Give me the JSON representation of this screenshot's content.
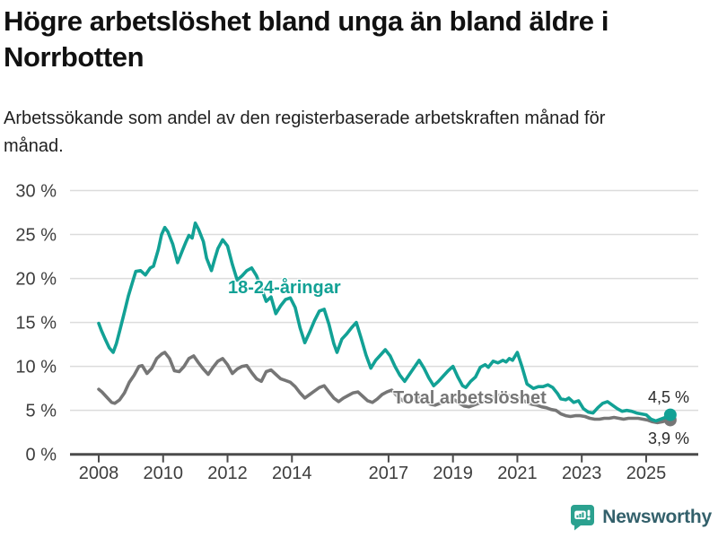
{
  "header": {
    "title": "Högre arbetslöshet bland unga än bland äldre i Norrbotten",
    "subtitle": "Arbetssökande som andel av den registerbaserade arbetskraften månad för månad."
  },
  "footer": {
    "brand": "Newsworthy",
    "logo_icon": "bar-chart-speech-bubble-icon"
  },
  "colors": {
    "young_line": "#12a195",
    "total_line": "#767676",
    "gridline": "#dcdcdc",
    "axis": "#4b4b4b",
    "tick_text": "#3d3d3d",
    "logo_bubble": "#2ba18f",
    "brand_text": "#33606b"
  },
  "chart_data": {
    "type": "line",
    "title": "Högre arbetslöshet bland unga än bland äldre i Norrbotten",
    "xlabel": "",
    "ylabel": "",
    "grid": "horizontal",
    "x_axis": {
      "ticks": [
        2008,
        2010,
        2012,
        2014,
        2017,
        2019,
        2021,
        2023,
        2025
      ],
      "tick_labels": [
        "2008",
        "2010",
        "2012",
        "2014",
        "2017",
        "2019",
        "2021",
        "2023",
        "2025"
      ],
      "range": [
        2007.1,
        2026.65
      ]
    },
    "y_axis": {
      "tick_values": [
        30,
        25,
        20,
        15,
        10,
        5,
        0
      ],
      "tick_labels": [
        "30 %",
        "25 %",
        "20 %",
        "15 %",
        "10 %",
        "5 %",
        "0 %"
      ],
      "range": [
        0,
        30
      ],
      "unit": "%"
    },
    "series": [
      {
        "name": "18-24-åringar",
        "color": "#12a195",
        "end_label": "4,5 %",
        "end_value": 4.5,
        "points": [
          [
            2008.0,
            14.9
          ],
          [
            2008.08,
            14.1
          ],
          [
            2008.2,
            13.1
          ],
          [
            2008.33,
            12.1
          ],
          [
            2008.45,
            11.6
          ],
          [
            2008.55,
            12.6
          ],
          [
            2008.67,
            14.3
          ],
          [
            2008.8,
            16.2
          ],
          [
            2008.92,
            18.0
          ],
          [
            2009.05,
            19.6
          ],
          [
            2009.15,
            20.8
          ],
          [
            2009.3,
            20.9
          ],
          [
            2009.45,
            20.4
          ],
          [
            2009.6,
            21.2
          ],
          [
            2009.7,
            21.4
          ],
          [
            2009.85,
            23.3
          ],
          [
            2009.95,
            25.0
          ],
          [
            2010.05,
            25.8
          ],
          [
            2010.15,
            25.3
          ],
          [
            2010.3,
            23.9
          ],
          [
            2010.45,
            21.8
          ],
          [
            2010.6,
            23.2
          ],
          [
            2010.7,
            24.1
          ],
          [
            2010.8,
            24.9
          ],
          [
            2010.9,
            24.6
          ],
          [
            2011.0,
            26.3
          ],
          [
            2011.1,
            25.6
          ],
          [
            2011.25,
            24.2
          ],
          [
            2011.35,
            22.3
          ],
          [
            2011.5,
            20.9
          ],
          [
            2011.6,
            22.2
          ],
          [
            2011.7,
            23.4
          ],
          [
            2011.85,
            24.4
          ],
          [
            2012.0,
            23.7
          ],
          [
            2012.15,
            21.6
          ],
          [
            2012.3,
            19.8
          ],
          [
            2012.45,
            20.3
          ],
          [
            2012.6,
            20.9
          ],
          [
            2012.75,
            21.2
          ],
          [
            2012.9,
            20.3
          ],
          [
            2013.05,
            18.9
          ],
          [
            2013.2,
            17.4
          ],
          [
            2013.35,
            17.9
          ],
          [
            2013.5,
            16.0
          ],
          [
            2013.65,
            16.9
          ],
          [
            2013.8,
            17.6
          ],
          [
            2013.95,
            17.8
          ],
          [
            2014.1,
            16.7
          ],
          [
            2014.25,
            14.4
          ],
          [
            2014.4,
            12.7
          ],
          [
            2014.55,
            13.9
          ],
          [
            2014.7,
            15.2
          ],
          [
            2014.85,
            16.3
          ],
          [
            2015.0,
            16.5
          ],
          [
            2015.15,
            14.8
          ],
          [
            2015.3,
            12.6
          ],
          [
            2015.4,
            11.6
          ],
          [
            2015.55,
            13.1
          ],
          [
            2015.7,
            13.7
          ],
          [
            2015.85,
            14.4
          ],
          [
            2016.0,
            15.0
          ],
          [
            2016.15,
            13.2
          ],
          [
            2016.3,
            11.3
          ],
          [
            2016.45,
            9.8
          ],
          [
            2016.6,
            10.7
          ],
          [
            2016.75,
            11.3
          ],
          [
            2016.9,
            11.9
          ],
          [
            2017.05,
            11.2
          ],
          [
            2017.2,
            10.0
          ],
          [
            2017.35,
            9.0
          ],
          [
            2017.5,
            8.3
          ],
          [
            2017.65,
            9.1
          ],
          [
            2017.8,
            9.9
          ],
          [
            2017.95,
            10.7
          ],
          [
            2018.1,
            9.8
          ],
          [
            2018.25,
            8.7
          ],
          [
            2018.4,
            7.8
          ],
          [
            2018.55,
            8.3
          ],
          [
            2018.7,
            8.9
          ],
          [
            2018.85,
            9.5
          ],
          [
            2019.0,
            10.0
          ],
          [
            2019.15,
            8.8
          ],
          [
            2019.3,
            7.8
          ],
          [
            2019.4,
            7.6
          ],
          [
            2019.55,
            8.3
          ],
          [
            2019.7,
            8.8
          ],
          [
            2019.85,
            9.9
          ],
          [
            2020.0,
            10.2
          ],
          [
            2020.1,
            9.9
          ],
          [
            2020.25,
            10.6
          ],
          [
            2020.4,
            10.4
          ],
          [
            2020.55,
            10.7
          ],
          [
            2020.65,
            10.5
          ],
          [
            2020.75,
            10.9
          ],
          [
            2020.85,
            10.7
          ],
          [
            2021.0,
            11.6
          ],
          [
            2021.15,
            9.9
          ],
          [
            2021.3,
            8.0
          ],
          [
            2021.5,
            7.5
          ],
          [
            2021.65,
            7.7
          ],
          [
            2021.8,
            7.7
          ],
          [
            2021.95,
            7.9
          ],
          [
            2022.1,
            7.6
          ],
          [
            2022.25,
            6.9
          ],
          [
            2022.35,
            6.3
          ],
          [
            2022.5,
            6.2
          ],
          [
            2022.6,
            6.4
          ],
          [
            2022.75,
            5.9
          ],
          [
            2022.9,
            6.1
          ],
          [
            2023.05,
            5.2
          ],
          [
            2023.2,
            4.8
          ],
          [
            2023.35,
            4.7
          ],
          [
            2023.5,
            5.3
          ],
          [
            2023.65,
            5.8
          ],
          [
            2023.8,
            6.0
          ],
          [
            2023.95,
            5.6
          ],
          [
            2024.1,
            5.2
          ],
          [
            2024.25,
            4.9
          ],
          [
            2024.4,
            5.0
          ],
          [
            2024.55,
            4.9
          ],
          [
            2024.7,
            4.7
          ],
          [
            2024.85,
            4.6
          ],
          [
            2025.0,
            4.5
          ],
          [
            2025.15,
            4.0
          ],
          [
            2025.3,
            3.8
          ],
          [
            2025.45,
            4.0
          ],
          [
            2025.6,
            4.2
          ],
          [
            2025.75,
            4.5
          ]
        ]
      },
      {
        "name": "Total arbetslöshet",
        "color": "#767676",
        "end_label": "3,9 %",
        "end_value": 3.9,
        "points": [
          [
            2008.0,
            7.4
          ],
          [
            2008.1,
            7.1
          ],
          [
            2008.25,
            6.5
          ],
          [
            2008.4,
            5.9
          ],
          [
            2008.5,
            5.8
          ],
          [
            2008.65,
            6.2
          ],
          [
            2008.8,
            7.0
          ],
          [
            2008.95,
            8.2
          ],
          [
            2009.1,
            9.0
          ],
          [
            2009.25,
            10.0
          ],
          [
            2009.35,
            10.1
          ],
          [
            2009.5,
            9.2
          ],
          [
            2009.65,
            9.8
          ],
          [
            2009.8,
            10.9
          ],
          [
            2009.95,
            11.4
          ],
          [
            2010.05,
            11.6
          ],
          [
            2010.2,
            10.9
          ],
          [
            2010.35,
            9.5
          ],
          [
            2010.5,
            9.4
          ],
          [
            2010.65,
            10.0
          ],
          [
            2010.8,
            10.9
          ],
          [
            2010.95,
            11.2
          ],
          [
            2011.1,
            10.4
          ],
          [
            2011.25,
            9.7
          ],
          [
            2011.4,
            9.1
          ],
          [
            2011.55,
            9.9
          ],
          [
            2011.7,
            10.6
          ],
          [
            2011.85,
            10.9
          ],
          [
            2012.0,
            10.2
          ],
          [
            2012.15,
            9.2
          ],
          [
            2012.3,
            9.7
          ],
          [
            2012.45,
            10.0
          ],
          [
            2012.6,
            10.1
          ],
          [
            2012.75,
            9.3
          ],
          [
            2012.9,
            8.6
          ],
          [
            2013.05,
            8.3
          ],
          [
            2013.2,
            9.4
          ],
          [
            2013.35,
            9.6
          ],
          [
            2013.5,
            9.1
          ],
          [
            2013.65,
            8.6
          ],
          [
            2013.8,
            8.4
          ],
          [
            2013.95,
            8.2
          ],
          [
            2014.1,
            7.7
          ],
          [
            2014.25,
            7.0
          ],
          [
            2014.4,
            6.4
          ],
          [
            2014.55,
            6.8
          ],
          [
            2014.7,
            7.2
          ],
          [
            2014.85,
            7.6
          ],
          [
            2015.0,
            7.8
          ],
          [
            2015.15,
            7.1
          ],
          [
            2015.3,
            6.4
          ],
          [
            2015.45,
            6.0
          ],
          [
            2015.6,
            6.4
          ],
          [
            2015.75,
            6.7
          ],
          [
            2015.9,
            7.0
          ],
          [
            2016.05,
            7.1
          ],
          [
            2016.2,
            6.6
          ],
          [
            2016.35,
            6.1
          ],
          [
            2016.5,
            5.9
          ],
          [
            2016.65,
            6.3
          ],
          [
            2016.8,
            6.8
          ],
          [
            2016.95,
            7.1
          ],
          [
            2017.1,
            7.3
          ],
          [
            2017.25,
            6.7
          ],
          [
            2017.4,
            6.2
          ],
          [
            2017.55,
            5.9
          ],
          [
            2017.7,
            6.1
          ],
          [
            2017.85,
            6.4
          ],
          [
            2018.0,
            6.6
          ],
          [
            2018.15,
            6.1
          ],
          [
            2018.3,
            5.7
          ],
          [
            2018.45,
            5.6
          ],
          [
            2018.6,
            5.8
          ],
          [
            2018.75,
            6.0
          ],
          [
            2018.9,
            6.1
          ],
          [
            2019.05,
            6.2
          ],
          [
            2019.2,
            5.8
          ],
          [
            2019.35,
            5.5
          ],
          [
            2019.5,
            5.4
          ],
          [
            2019.65,
            5.6
          ],
          [
            2019.8,
            5.8
          ],
          [
            2019.95,
            6.0
          ],
          [
            2020.1,
            6.2
          ],
          [
            2020.25,
            6.5
          ],
          [
            2020.4,
            6.7
          ],
          [
            2020.55,
            6.8
          ],
          [
            2020.7,
            6.7
          ],
          [
            2020.85,
            6.6
          ],
          [
            2021.0,
            6.5
          ],
          [
            2021.15,
            6.2
          ],
          [
            2021.3,
            5.9
          ],
          [
            2021.45,
            5.7
          ],
          [
            2021.6,
            5.6
          ],
          [
            2021.75,
            5.4
          ],
          [
            2021.9,
            5.3
          ],
          [
            2022.05,
            5.1
          ],
          [
            2022.2,
            5.0
          ],
          [
            2022.35,
            4.6
          ],
          [
            2022.5,
            4.4
          ],
          [
            2022.65,
            4.3
          ],
          [
            2022.8,
            4.4
          ],
          [
            2022.95,
            4.4
          ],
          [
            2023.1,
            4.3
          ],
          [
            2023.25,
            4.1
          ],
          [
            2023.4,
            4.0
          ],
          [
            2023.55,
            4.0
          ],
          [
            2023.7,
            4.1
          ],
          [
            2023.85,
            4.1
          ],
          [
            2024.0,
            4.2
          ],
          [
            2024.15,
            4.1
          ],
          [
            2024.3,
            4.0
          ],
          [
            2024.45,
            4.1
          ],
          [
            2024.6,
            4.1
          ],
          [
            2024.75,
            4.1
          ],
          [
            2024.9,
            4.0
          ],
          [
            2025.05,
            3.9
          ],
          [
            2025.2,
            3.7
          ],
          [
            2025.35,
            3.6
          ],
          [
            2025.5,
            3.7
          ],
          [
            2025.6,
            3.8
          ],
          [
            2025.75,
            3.9
          ]
        ]
      }
    ]
  }
}
